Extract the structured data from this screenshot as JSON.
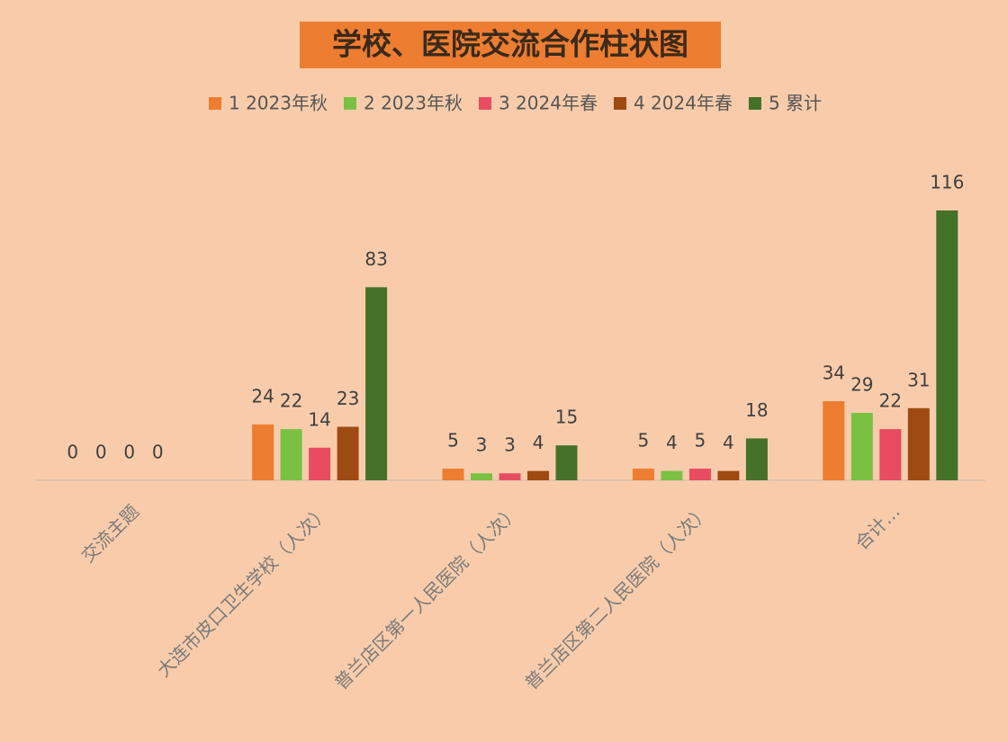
{
  "chart_data": {
    "type": "bar",
    "title": "学校、医院交流合作柱状图",
    "categories": [
      "交流主题",
      "大连市皮口卫生学校（人次）",
      "普兰店区第一人民医院（人次）",
      "普兰店区第二人民医院（人次）",
      "合计…"
    ],
    "series": [
      {
        "name": "1 2023年秋",
        "color": "#ED7D31",
        "values": [
          0,
          24,
          5,
          5,
          34
        ]
      },
      {
        "name": "2 2023年秋",
        "color": "#7AC143",
        "values": [
          0,
          22,
          3,
          4,
          29
        ]
      },
      {
        "name": "3 2024年春",
        "color": "#E84C61",
        "values": [
          0,
          14,
          3,
          5,
          22
        ]
      },
      {
        "name": "4 2024年春",
        "color": "#9E4A12",
        "values": [
          0,
          23,
          4,
          4,
          31
        ]
      },
      {
        "name": "5 累计",
        "color": "#457229",
        "values": [
          null,
          83,
          15,
          18,
          116
        ]
      }
    ],
    "legend": "top"
  }
}
